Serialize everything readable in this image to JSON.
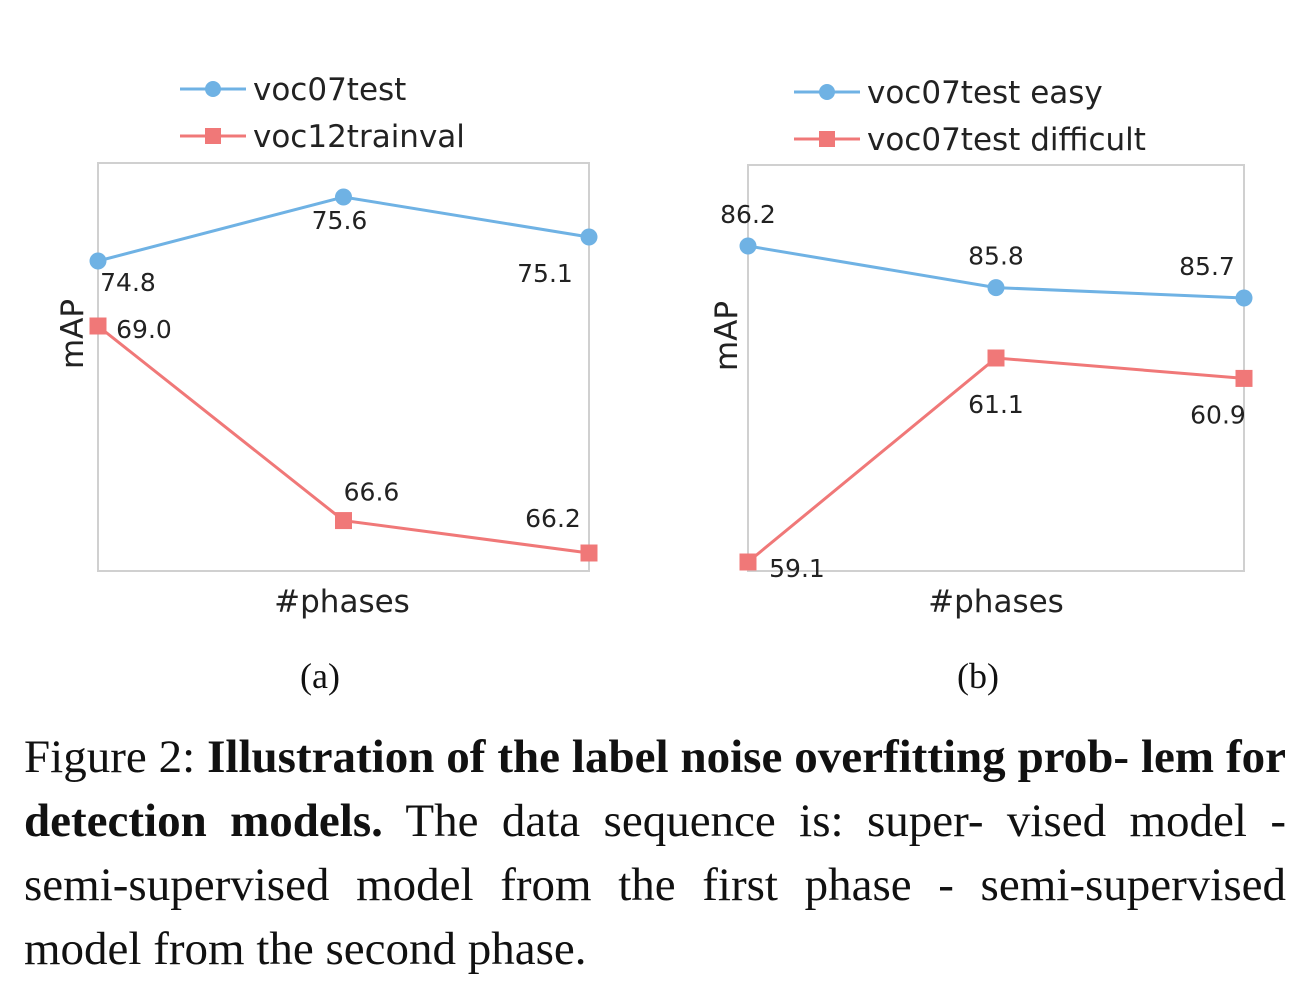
{
  "colors": {
    "series_blue": "#6fb2e4",
    "series_red": "#f07878",
    "frame": "#d0d0d0"
  },
  "chart_data": [
    {
      "type": "line",
      "panel_label": "(a)",
      "xlabel": "#phases",
      "ylabel": "mAP",
      "x": [
        1,
        2,
        3
      ],
      "legend_position": "top",
      "grid": false,
      "series": [
        {
          "name": "voc07test",
          "values": [
            74.8,
            75.6,
            75.1
          ],
          "labels": [
            "74.8",
            "75.6",
            "75.1"
          ],
          "color": "#6fb2e4",
          "marker": "circle"
        },
        {
          "name": "voc12trainval",
          "values": [
            69.0,
            66.6,
            66.2
          ],
          "labels": [
            "69.0",
            "66.6",
            "66.2"
          ],
          "color": "#f07878",
          "marker": "square"
        }
      ]
    },
    {
      "type": "line",
      "panel_label": "(b)",
      "xlabel": "#phases",
      "ylabel": "mAP",
      "x": [
        1,
        2,
        3
      ],
      "legend_position": "top",
      "grid": false,
      "series": [
        {
          "name": "voc07test easy",
          "values": [
            86.2,
            85.8,
            85.7
          ],
          "labels": [
            "86.2",
            "85.8",
            "85.7"
          ],
          "color": "#6fb2e4",
          "marker": "circle"
        },
        {
          "name": "voc07test difficult",
          "values": [
            59.1,
            61.1,
            60.9
          ],
          "labels": [
            "59.1",
            "61.1",
            "60.9"
          ],
          "color": "#f07878",
          "marker": "square"
        }
      ]
    }
  ],
  "caption": {
    "prefix": "Figure 2: ",
    "bold": "Illustration of the label noise overfitting prob- lem for detection models.",
    "rest": " The data sequence is: super- vised model - semi-supervised model from the first phase - semi-supervised model from the second phase."
  }
}
